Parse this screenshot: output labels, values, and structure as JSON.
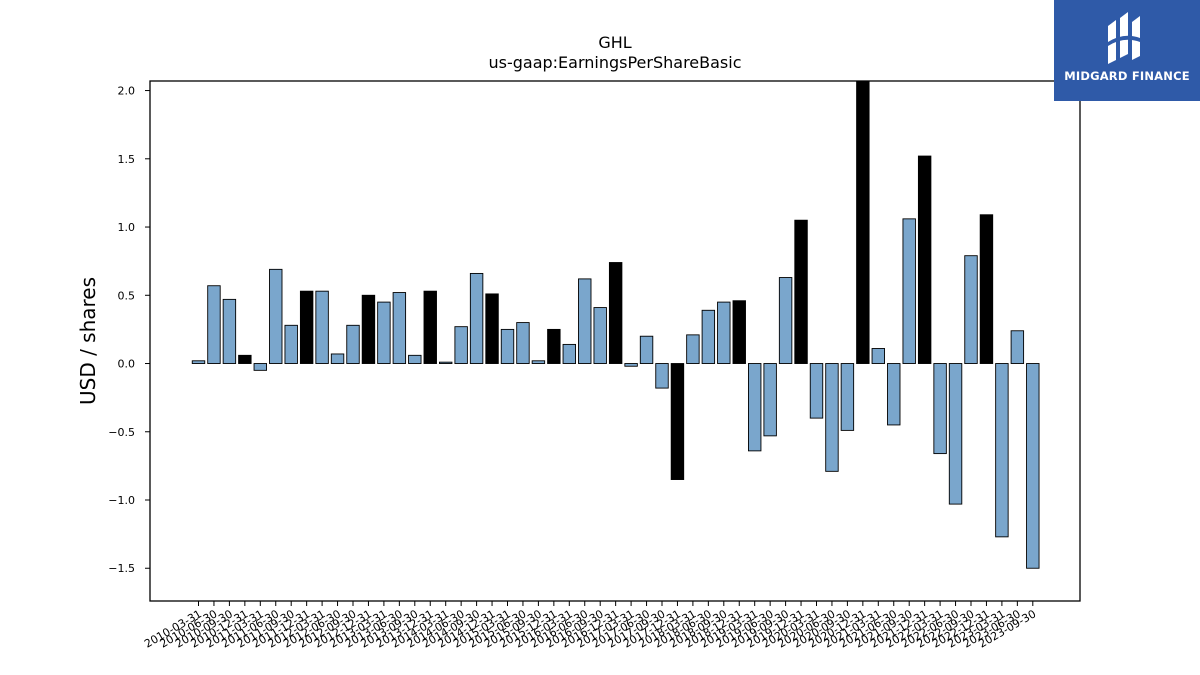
{
  "brand": {
    "name": "MIDGARD FINANCE"
  },
  "colors": {
    "positive": "#7aa6cc",
    "highlight": "#000000",
    "brand": "#2f5aa8"
  },
  "chart_data": {
    "type": "bar",
    "title": "GHL",
    "subtitle": "us-gaap:EarningsPerShareBasic",
    "xlabel": "",
    "ylabel": "USD / shares",
    "ylim": [
      -1.74,
      2.07
    ],
    "yticks": [
      -1.5,
      -1.0,
      -0.5,
      0.0,
      0.5,
      1.0,
      1.5,
      2.0
    ],
    "ytick_labels": [
      "−1.5",
      "−1.0",
      "−0.5",
      "0.0",
      "0.5",
      "1.0",
      "1.5",
      "2.0"
    ],
    "categories": [
      "2010-03-31",
      "2010-06-30",
      "2010-09-30",
      "2010-12-31",
      "2011-03-31",
      "2011-06-30",
      "2011-09-30",
      "2011-12-31",
      "2012-03-31",
      "2012-06-30",
      "2012-09-30",
      "2012-12-31",
      "2013-03-31",
      "2013-06-30",
      "2013-09-30",
      "2013-12-31",
      "2014-03-31",
      "2014-06-30",
      "2014-09-30",
      "2014-12-31",
      "2015-03-31",
      "2015-06-30",
      "2015-09-30",
      "2015-12-31",
      "2016-03-31",
      "2016-06-30",
      "2016-09-30",
      "2016-12-31",
      "2017-03-31",
      "2017-06-30",
      "2017-09-30",
      "2017-12-31",
      "2018-03-31",
      "2018-06-30",
      "2018-09-30",
      "2018-12-31",
      "2019-03-31",
      "2019-06-30",
      "2019-09-30",
      "2019-12-31",
      "2020-03-31",
      "2020-06-30",
      "2020-09-30",
      "2020-12-31",
      "2021-03-31",
      "2021-06-30",
      "2021-09-30",
      "2021-12-31",
      "2022-03-31",
      "2022-06-30",
      "2022-09-30",
      "2022-12-31",
      "2023-03-31",
      "2023-06-30",
      "2023-09-30"
    ],
    "series": [
      {
        "values": [
          0.02,
          0.57,
          0.47,
          0.06,
          -0.05,
          0.69,
          0.28,
          0.53,
          0.53,
          0.07,
          0.28,
          0.5,
          0.45,
          0.52,
          0.06,
          0.53,
          0.01,
          0.27,
          0.66,
          0.51,
          0.25,
          0.3,
          0.02,
          0.25,
          0.14,
          0.62,
          0.41,
          0.74,
          -0.02,
          0.2,
          -0.18,
          -0.85,
          0.21,
          0.39,
          0.45,
          0.46,
          -0.64,
          -0.53,
          0.63,
          1.05,
          -0.4,
          -0.79,
          -0.49,
          2.1,
          0.11,
          -0.45,
          1.06,
          1.52,
          -0.66,
          -1.03,
          0.79,
          1.09,
          -1.27,
          0.24,
          -1.5
        ],
        "highlight": [
          false,
          false,
          false,
          true,
          false,
          false,
          false,
          true,
          false,
          false,
          false,
          true,
          false,
          false,
          false,
          true,
          false,
          false,
          false,
          true,
          false,
          false,
          false,
          true,
          false,
          false,
          false,
          true,
          false,
          false,
          false,
          true,
          false,
          false,
          false,
          true,
          false,
          false,
          false,
          true,
          false,
          false,
          false,
          true,
          false,
          false,
          false,
          true,
          false,
          false,
          false,
          true,
          false,
          false,
          false
        ]
      }
    ],
    "grid": false
  }
}
